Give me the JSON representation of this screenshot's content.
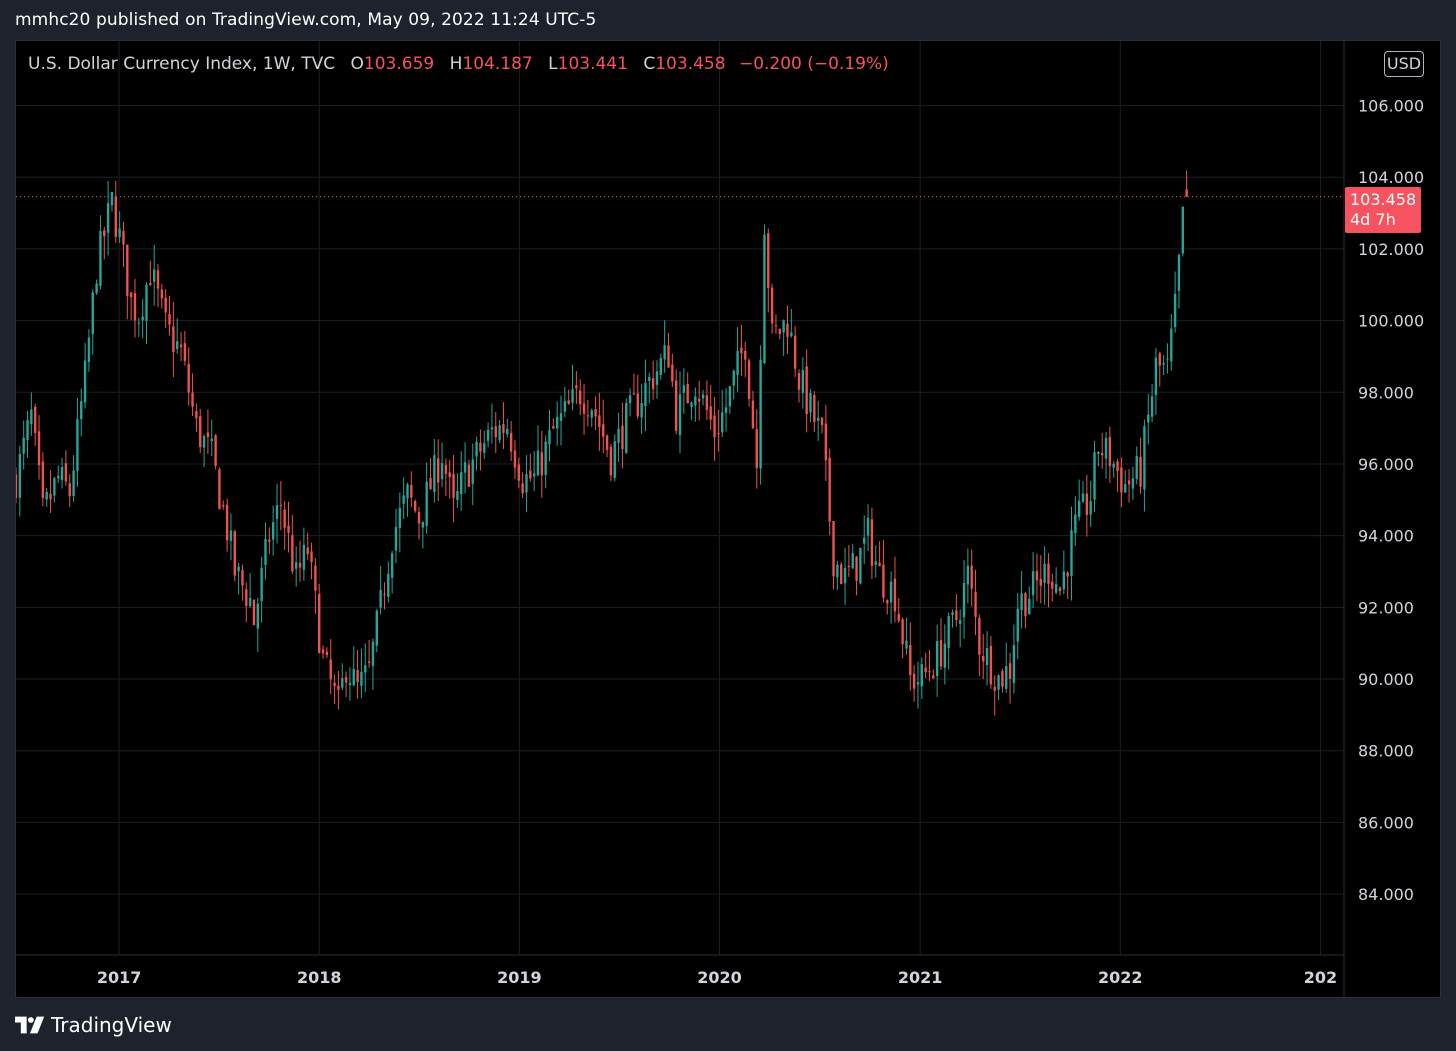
{
  "header": {
    "published_line": "mmhc20 published on TradingView.com, May 09, 2022 11:24 UTC-5"
  },
  "legend": {
    "symbol": "U.S. Dollar Currency Index, 1W, TVC",
    "open_label": "O",
    "open": "103.659",
    "high_label": "H",
    "high": "104.187",
    "low_label": "L",
    "low": "103.441",
    "close_label": "C",
    "close": "103.458",
    "change": "−0.200 (−0.19%)"
  },
  "currency_button": "USD",
  "price_badge": {
    "price": "103.458",
    "countdown": "4d 7h"
  },
  "footer": {
    "brand": "TradingView"
  },
  "colors": {
    "up": "#26a69a",
    "down": "#ef5350",
    "price_line": "#f7525f",
    "background": "#000000",
    "grid": "#1c1f26"
  },
  "chart_data": {
    "type": "candlestick",
    "interval": "1W",
    "y_ticks": [
      "106.000",
      "104.000",
      "102.000",
      "100.000",
      "98.000",
      "96.000",
      "94.000",
      "92.000",
      "90.000",
      "88.000",
      "86.000",
      "84.000"
    ],
    "x_ticks": [
      "2017",
      "2018",
      "2019",
      "2020",
      "2021",
      "2022",
      "202"
    ],
    "ylim": [
      82.3,
      107.8
    ],
    "xlim": [
      "2016-06-27",
      "2023-02-13"
    ],
    "last_price": 103.458,
    "anchor_closes": [
      [
        "2016-06-27",
        95.6
      ],
      [
        "2016-07-25",
        97.3
      ],
      [
        "2016-08-15",
        94.6
      ],
      [
        "2016-09-12",
        95.6
      ],
      [
        "2016-10-03",
        95.2
      ],
      [
        "2016-10-31",
        98.4
      ],
      [
        "2016-11-21",
        101.5
      ],
      [
        "2016-12-19",
        103.3
      ],
      [
        "2017-01-02",
        102.3
      ],
      [
        "2017-01-23",
        100.5
      ],
      [
        "2017-02-06",
        100.2
      ],
      [
        "2017-02-27",
        101.4
      ],
      [
        "2017-03-27",
        99.8
      ],
      [
        "2017-04-24",
        99.1
      ],
      [
        "2017-05-22",
        97.0
      ],
      [
        "2017-06-19",
        96.2
      ],
      [
        "2017-07-17",
        94.2
      ],
      [
        "2017-07-31",
        93.0
      ],
      [
        "2017-08-28",
        92.2
      ],
      [
        "2017-09-04",
        91.6
      ],
      [
        "2017-10-02",
        94.0
      ],
      [
        "2017-10-23",
        94.9
      ],
      [
        "2017-11-20",
        92.8
      ],
      [
        "2017-12-11",
        93.6
      ],
      [
        "2018-01-08",
        90.5
      ],
      [
        "2018-02-05",
        89.2
      ],
      [
        "2018-02-19",
        90.4
      ],
      [
        "2018-03-12",
        89.7
      ],
      [
        "2018-04-02",
        90.2
      ],
      [
        "2018-04-23",
        92.0
      ],
      [
        "2018-05-14",
        94.0
      ],
      [
        "2018-06-11",
        95.1
      ],
      [
        "2018-07-02",
        94.5
      ],
      [
        "2018-08-13",
        96.3
      ],
      [
        "2018-09-03",
        94.7
      ],
      [
        "2018-09-24",
        95.7
      ],
      [
        "2018-11-12",
        96.9
      ],
      [
        "2018-12-10",
        97.1
      ],
      [
        "2019-01-07",
        95.6
      ],
      [
        "2019-01-28",
        95.6
      ],
      [
        "2019-03-04",
        96.9
      ],
      [
        "2019-04-22",
        98.0
      ],
      [
        "2019-05-13",
        97.7
      ],
      [
        "2019-06-17",
        96.2
      ],
      [
        "2019-07-15",
        97.2
      ],
      [
        "2019-08-26",
        98.3
      ],
      [
        "2019-09-30",
        99.1
      ],
      [
        "2019-10-14",
        97.4
      ],
      [
        "2019-11-18",
        98.3
      ],
      [
        "2019-12-23",
        96.9
      ],
      [
        "2020-01-13",
        97.6
      ],
      [
        "2020-02-17",
        99.4
      ],
      [
        "2020-03-09",
        96.0
      ],
      [
        "2020-03-23",
        102.8
      ],
      [
        "2020-04-06",
        99.5
      ],
      [
        "2020-05-04",
        100.0
      ],
      [
        "2020-05-25",
        98.4
      ],
      [
        "2020-06-15",
        97.5
      ],
      [
        "2020-07-06",
        96.7
      ],
      [
        "2020-07-27",
        93.4
      ],
      [
        "2020-08-17",
        92.8
      ],
      [
        "2020-09-07",
        93.2
      ],
      [
        "2020-09-28",
        94.0
      ],
      [
        "2020-10-19",
        92.9
      ],
      [
        "2020-11-16",
        92.4
      ],
      [
        "2020-12-14",
        90.0
      ],
      [
        "2021-01-04",
        90.0
      ],
      [
        "2021-02-01",
        90.6
      ],
      [
        "2021-03-08",
        91.7
      ],
      [
        "2021-03-29",
        92.9
      ],
      [
        "2021-04-19",
        91.0
      ],
      [
        "2021-05-24",
        90.0
      ],
      [
        "2021-06-14",
        90.3
      ],
      [
        "2021-06-28",
        92.1
      ],
      [
        "2021-07-26",
        92.5
      ],
      [
        "2021-08-23",
        93.1
      ],
      [
        "2021-09-13",
        92.5
      ],
      [
        "2021-10-11",
        94.2
      ],
      [
        "2021-11-08",
        95.1
      ],
      [
        "2021-11-22",
        96.5
      ],
      [
        "2021-12-13",
        96.2
      ],
      [
        "2022-01-10",
        95.4
      ],
      [
        "2022-02-07",
        95.8
      ],
      [
        "2022-03-07",
        98.7
      ],
      [
        "2022-03-28",
        98.6
      ],
      [
        "2022-04-11",
        100.3
      ],
      [
        "2022-04-25",
        102.8
      ],
      [
        "2022-05-02",
        103.6
      ]
    ]
  }
}
